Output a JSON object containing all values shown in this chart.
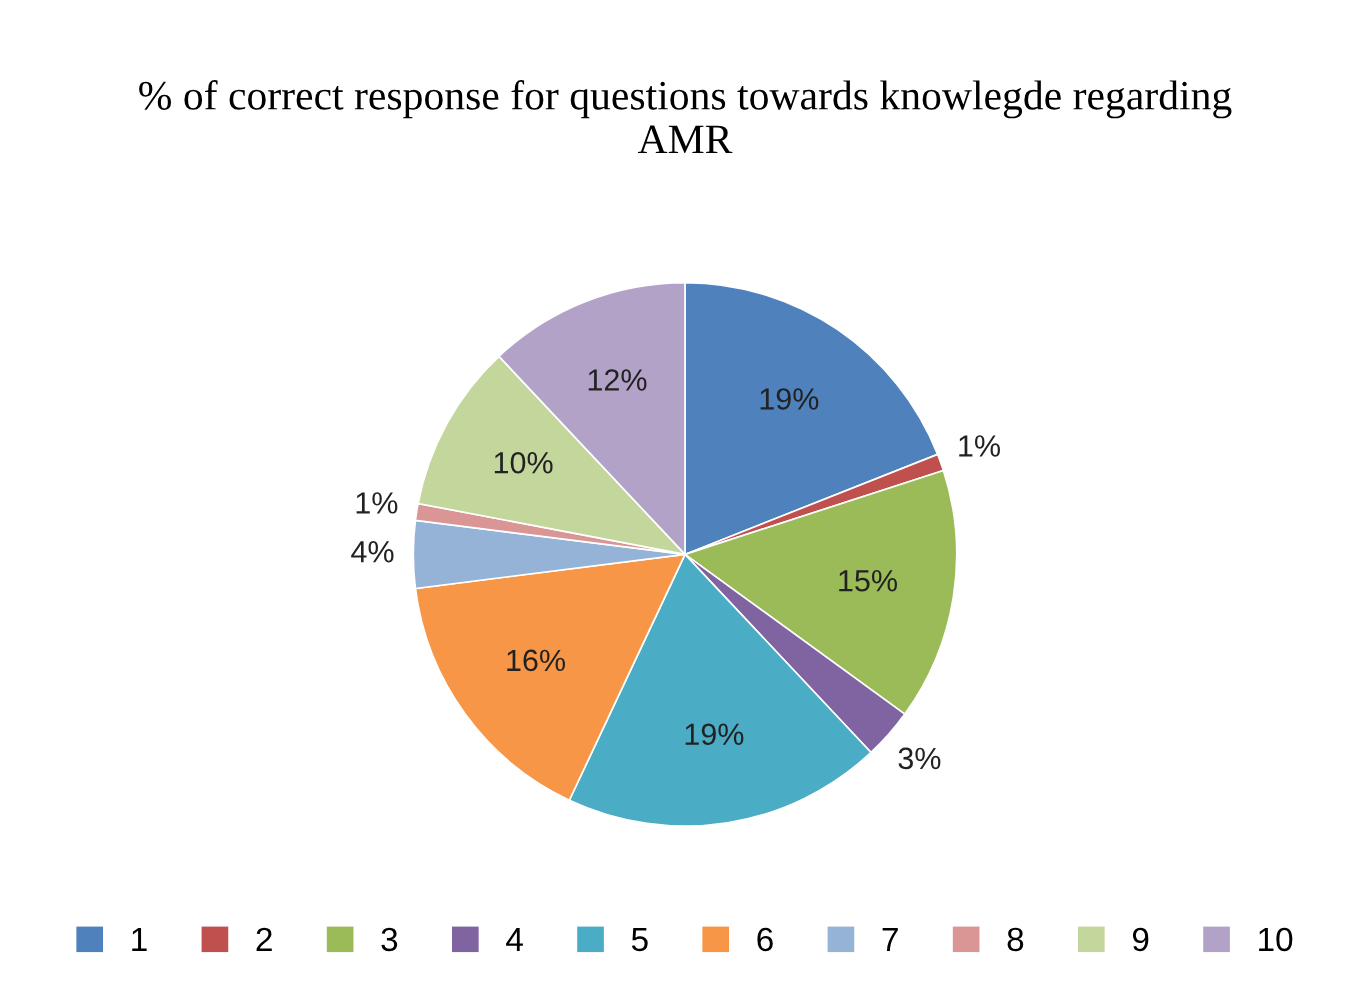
{
  "chart_data": {
    "type": "pie",
    "title": "% of correct response for questions towards knowlegde regarding AMR",
    "categories": [
      "1",
      "2",
      "3",
      "4",
      "5",
      "6",
      "7",
      "8",
      "9",
      "10"
    ],
    "values": [
      19,
      1,
      15,
      3,
      19,
      16,
      4,
      1,
      10,
      12
    ],
    "colors": [
      "#4f81bd",
      "#c0504d",
      "#9bbb59",
      "#8064a2",
      "#4bacc6",
      "#f79646",
      "#95b3d7",
      "#d99694",
      "#c3d69b",
      "#b3a2c7"
    ],
    "value_labels": [
      "19%",
      "1%",
      "15%",
      "3%",
      "19%",
      "16%",
      "4%",
      "1%",
      "10%",
      "12%"
    ],
    "legend": "bottom"
  }
}
